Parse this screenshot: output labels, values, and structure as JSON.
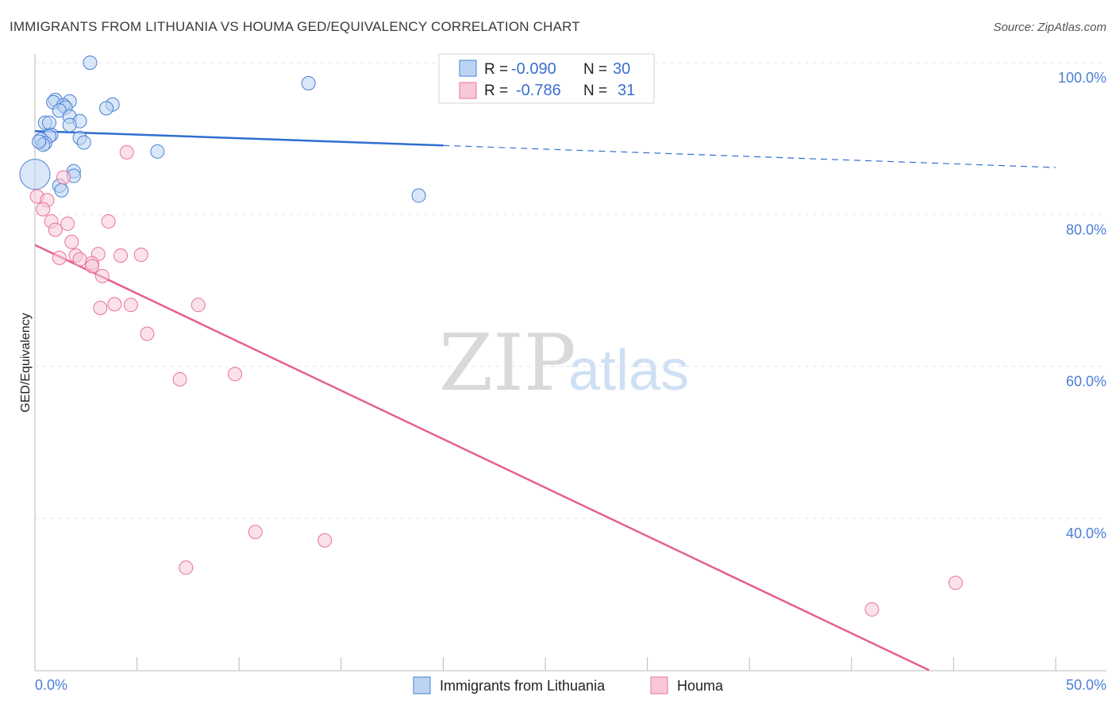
{
  "title": "IMMIGRANTS FROM LITHUANIA VS HOUMA GED/EQUIVALENCY CORRELATION CHART",
  "source": "Source: ZipAtlas.com",
  "watermark": {
    "zip": "ZIP",
    "atlas": "atlas"
  },
  "colors": {
    "blue": "#4a7fd4",
    "blue_fill": "#bcd4f3",
    "blue_line": "#2f6fd0",
    "pink": "#e8739a",
    "pink_fill": "#f8c8d8",
    "pink_line": "#e5608e",
    "grid": "#e6e6e6"
  },
  "legend": {
    "r_label": "R =",
    "n_label": "N =",
    "blue": {
      "r": "-0.090",
      "n": "30"
    },
    "pink": {
      "r": "-0.786",
      "n": "31"
    }
  },
  "chart_data": {
    "type": "scatter",
    "title": "IMMIGRANTS FROM LITHUANIA VS HOUMA GED/EQUIVALENCY CORRELATION CHART",
    "xlabel": "",
    "ylabel": "GED/Equivalency",
    "xlim": [
      0,
      50
    ],
    "ylim": [
      20,
      102
    ],
    "x_tick_labels": [
      "0.0%",
      "50.0%"
    ],
    "y_ticks": [
      40,
      60,
      80,
      100
    ],
    "y_tick_labels": [
      "40.0%",
      "60.0%",
      "80.0%",
      "100.0%"
    ],
    "series": [
      {
        "name": "Immigrants from Lithuania",
        "color": "#4a7fd4",
        "r": -0.09,
        "n": 30,
        "trend": {
          "x0": 0,
          "y0": 91.0,
          "x1": 20,
          "y1": 89.1,
          "x_dash_end": 50,
          "y_dash_end": 86.2
        },
        "points": [
          {
            "x": 0.0,
            "y": 85.3,
            "big": true
          },
          {
            "x": 2.7,
            "y": 100.0
          },
          {
            "x": 13.4,
            "y": 97.3
          },
          {
            "x": 1.0,
            "y": 95.1
          },
          {
            "x": 0.9,
            "y": 94.8
          },
          {
            "x": 1.7,
            "y": 94.9
          },
          {
            "x": 1.4,
            "y": 94.4
          },
          {
            "x": 1.5,
            "y": 94.1
          },
          {
            "x": 3.8,
            "y": 94.5
          },
          {
            "x": 3.5,
            "y": 94.0
          },
          {
            "x": 1.2,
            "y": 93.7
          },
          {
            "x": 1.7,
            "y": 92.9
          },
          {
            "x": 0.5,
            "y": 92.1
          },
          {
            "x": 0.7,
            "y": 92.1
          },
          {
            "x": 2.2,
            "y": 92.3
          },
          {
            "x": 1.7,
            "y": 91.8
          },
          {
            "x": 0.8,
            "y": 90.5
          },
          {
            "x": 0.7,
            "y": 90.3
          },
          {
            "x": 0.3,
            "y": 89.9
          },
          {
            "x": 0.5,
            "y": 89.4
          },
          {
            "x": 0.4,
            "y": 89.2
          },
          {
            "x": 2.2,
            "y": 90.1
          },
          {
            "x": 2.4,
            "y": 89.5
          },
          {
            "x": 6.0,
            "y": 88.3
          },
          {
            "x": 1.9,
            "y": 85.7
          },
          {
            "x": 1.9,
            "y": 85.1
          },
          {
            "x": 1.2,
            "y": 83.8
          },
          {
            "x": 1.3,
            "y": 83.2
          },
          {
            "x": 18.8,
            "y": 82.5
          },
          {
            "x": 0.2,
            "y": 89.6
          }
        ]
      },
      {
        "name": "Houma",
        "color": "#e8739a",
        "r": -0.786,
        "n": 31,
        "trend": {
          "x0": 0,
          "y0": 76.0,
          "x1": 43.8,
          "y1": 20.0
        },
        "points": [
          {
            "x": 0.1,
            "y": 82.4
          },
          {
            "x": 0.6,
            "y": 81.9
          },
          {
            "x": 0.4,
            "y": 80.7
          },
          {
            "x": 4.5,
            "y": 88.2
          },
          {
            "x": 1.4,
            "y": 84.9
          },
          {
            "x": 0.8,
            "y": 79.1
          },
          {
            "x": 1.6,
            "y": 78.8
          },
          {
            "x": 1.0,
            "y": 78.0
          },
          {
            "x": 3.6,
            "y": 79.1
          },
          {
            "x": 1.8,
            "y": 76.4
          },
          {
            "x": 1.2,
            "y": 74.3
          },
          {
            "x": 2.0,
            "y": 74.6
          },
          {
            "x": 2.2,
            "y": 74.1
          },
          {
            "x": 3.1,
            "y": 74.8
          },
          {
            "x": 4.2,
            "y": 74.6
          },
          {
            "x": 5.2,
            "y": 74.7
          },
          {
            "x": 2.8,
            "y": 73.6
          },
          {
            "x": 2.8,
            "y": 73.2
          },
          {
            "x": 3.3,
            "y": 71.9
          },
          {
            "x": 3.9,
            "y": 68.2
          },
          {
            "x": 3.2,
            "y": 67.7
          },
          {
            "x": 4.7,
            "y": 68.1
          },
          {
            "x": 8.0,
            "y": 68.1
          },
          {
            "x": 5.5,
            "y": 64.3
          },
          {
            "x": 7.1,
            "y": 58.3
          },
          {
            "x": 9.8,
            "y": 59.0
          },
          {
            "x": 10.8,
            "y": 38.2
          },
          {
            "x": 14.2,
            "y": 37.1
          },
          {
            "x": 7.4,
            "y": 33.5
          },
          {
            "x": 41.0,
            "y": 28.0
          },
          {
            "x": 45.1,
            "y": 31.5
          }
        ]
      }
    ]
  }
}
